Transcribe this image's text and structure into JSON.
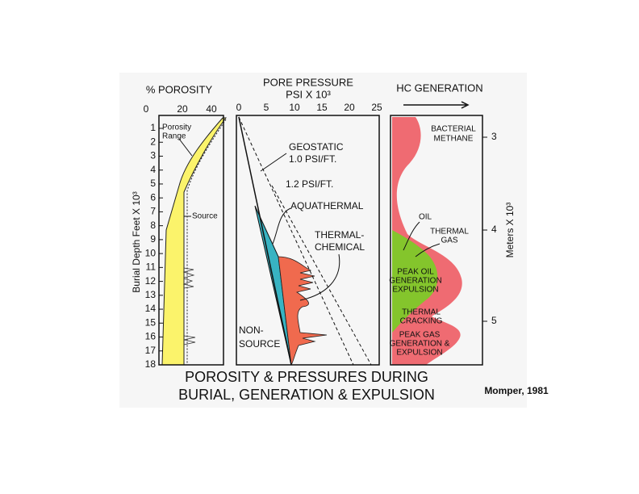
{
  "porosity_panel": {
    "title": "% POROSITY",
    "ticks": [
      0,
      20,
      40
    ],
    "labels": {
      "range": [
        "Porosity",
        "Range"
      ],
      "source": "Source"
    }
  },
  "pressure_panel": {
    "title": [
      "PORE PRESSURE",
      "PSI X 10³"
    ],
    "ticks": [
      0,
      5,
      10,
      15,
      20,
      25
    ],
    "labels": {
      "geostatic": [
        "GEOSTATIC",
        "1.0 PSI/FT."
      ],
      "gradient": "1.2 PSI/FT.",
      "aquathermal": "AQUATHERMAL",
      "thermal_chemical": [
        "THERMAL-",
        "CHEMICAL"
      ],
      "non_source": [
        "NON-",
        "SOURCE"
      ]
    }
  },
  "hc_panel": {
    "title": "HC GENERATION",
    "labels": {
      "bacterial": [
        "BACTERIAL",
        "METHANE"
      ],
      "oil": "OIL",
      "thermal_gas": [
        "THERMAL",
        "GAS"
      ],
      "peak_oil": [
        "PEAK OIL",
        "GENERATION",
        "EXPULSION"
      ],
      "cracking": [
        "THERMAL",
        "CRACKING"
      ],
      "peak_gas": [
        "PEAK GAS",
        "GENERATION &",
        "EXPULSION"
      ]
    }
  },
  "depth_axis": {
    "label": "Burial Depth Feet X 10³",
    "ticks": [
      1,
      2,
      3,
      4,
      5,
      6,
      7,
      8,
      9,
      10,
      11,
      12,
      13,
      14,
      15,
      16,
      17,
      18
    ]
  },
  "meters_axis": {
    "label": "Meters X 10³",
    "ticks": [
      3,
      4,
      5
    ]
  },
  "caption": [
    "POROSITY & PRESSURES DURING",
    "BURIAL, GENERATION & EXPULSION"
  ],
  "credit": "Momper, 1981"
}
